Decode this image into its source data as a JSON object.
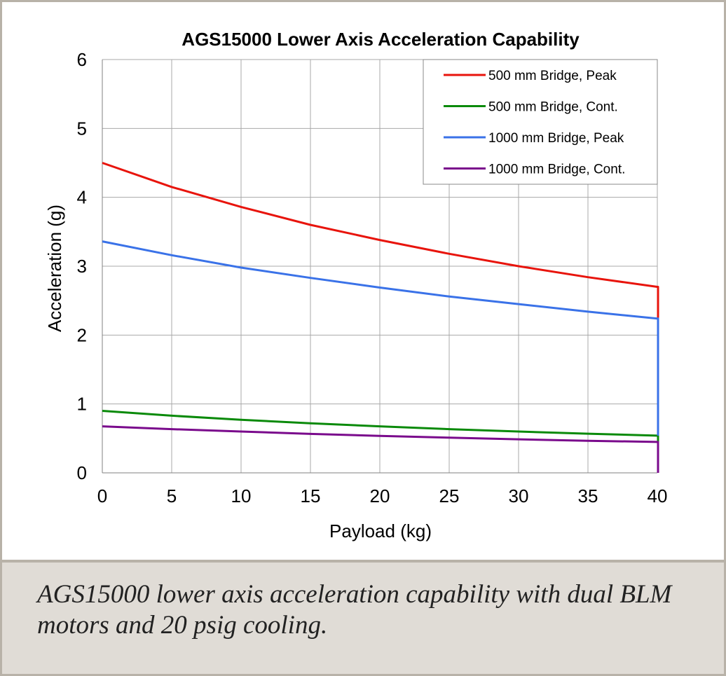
{
  "chart_data": {
    "type": "line",
    "title": "AGS15000 Lower Axis Acceleration Capability",
    "xlabel": "Payload (kg)",
    "ylabel": "Acceleration (g)",
    "xlim": [
      0,
      40
    ],
    "ylim": [
      0,
      6
    ],
    "xticks": [
      0,
      5,
      10,
      15,
      20,
      25,
      30,
      35,
      40
    ],
    "yticks": [
      0,
      1,
      2,
      3,
      4,
      5,
      6
    ],
    "grid": true,
    "legend_position": "top-right",
    "series": [
      {
        "name": "500 mm Bridge, Peak",
        "color": "#e8140c",
        "x": [
          0,
          5,
          10,
          15,
          20,
          25,
          30,
          35,
          40,
          40.05,
          40.05
        ],
        "y": [
          4.5,
          4.15,
          3.86,
          3.6,
          3.38,
          3.18,
          3.0,
          2.84,
          2.7,
          2.7,
          2.25
        ]
      },
      {
        "name": "500 mm Bridge, Cont.",
        "color": "#0a8a0a",
        "x": [
          0,
          5,
          10,
          15,
          20,
          25,
          30,
          35,
          40,
          40.05,
          40.05
        ],
        "y": [
          0.9,
          0.83,
          0.77,
          0.72,
          0.675,
          0.635,
          0.6,
          0.568,
          0.54,
          0.54,
          0.45
        ]
      },
      {
        "name": "1000 mm Bridge, Peak",
        "color": "#3a72e8",
        "x": [
          0,
          5,
          10,
          15,
          20,
          25,
          30,
          35,
          40,
          40.05,
          40.05
        ],
        "y": [
          3.36,
          3.16,
          2.98,
          2.83,
          2.69,
          2.56,
          2.45,
          2.34,
          2.24,
          2.24,
          0.54
        ]
      },
      {
        "name": "1000 mm Bridge, Cont.",
        "color": "#7a0a8c",
        "x": [
          0,
          5,
          10,
          15,
          20,
          25,
          30,
          35,
          40,
          40.05,
          40.05
        ],
        "y": [
          0.675,
          0.635,
          0.6,
          0.565,
          0.537,
          0.511,
          0.487,
          0.466,
          0.448,
          0.448,
          0.0
        ]
      }
    ]
  },
  "caption": {
    "text": "AGS15000 lower axis acceleration capability with dual BLM motors and 20 psig cooling."
  }
}
